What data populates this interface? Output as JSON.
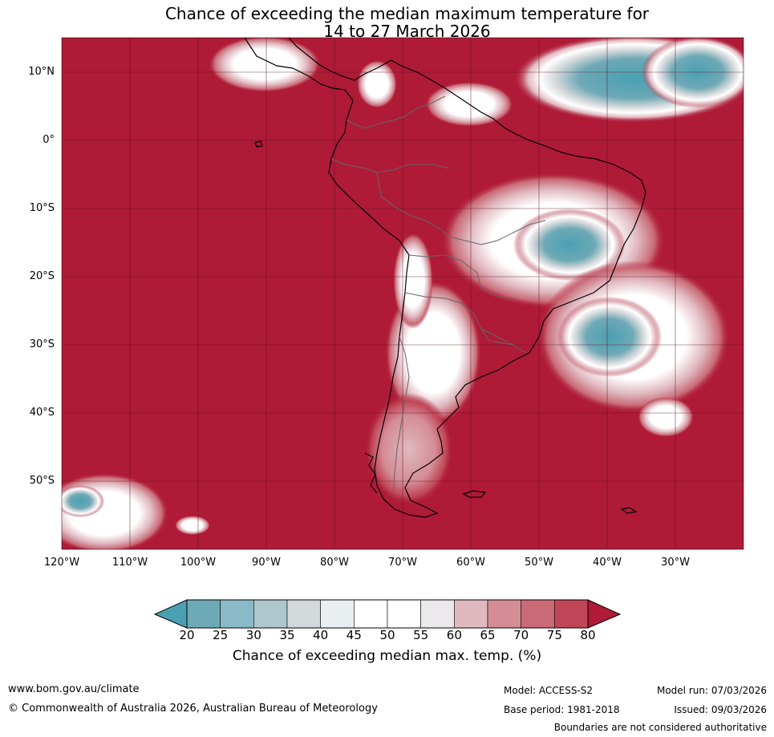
{
  "title": {
    "line1": "Chance of exceeding the median maximum temperature for",
    "line2": "14 to 27 March 2026"
  },
  "axes": {
    "lat_labels": [
      "10°N",
      "0°",
      "10°S",
      "20°S",
      "30°S",
      "40°S",
      "50°S"
    ],
    "lon_labels": [
      "120°W",
      "110°W",
      "100°W",
      "90°W",
      "80°W",
      "70°W",
      "60°W",
      "50°W",
      "40°W",
      "30°W"
    ],
    "lon_range": [
      -120,
      -20
    ],
    "lat_range": [
      -60,
      15
    ]
  },
  "colorbar": {
    "ticks": [
      "20",
      "25",
      "30",
      "35",
      "40",
      "45",
      "50",
      "55",
      "60",
      "65",
      "70",
      "75",
      "80"
    ],
    "colors": [
      "#6ea9b6",
      "#8ab9c7",
      "#adc7cd",
      "#d3d8da",
      "#e9eef1",
      "#ffffff",
      "#ffffff",
      "#ebe9eb",
      "#e0b9c0",
      "#d48c95",
      "#c96a76",
      "#c04657"
    ],
    "low_extend_color": "#4aa0b2",
    "high_extend_color": "#af1a37",
    "label": "Chance of exceeding median max. temp. (%)"
  },
  "colors": {
    "dominant": "#af1a37",
    "cool": "#4aa0b2"
  },
  "footer": {
    "website": "www.bom.gov.au/climate",
    "copyright": "© Commonwealth of Australia 2026, Australian Bureau of Meteorology",
    "model": "Model: ACCESS-S2",
    "base_period": "Base period: 1981-2018",
    "model_run": "Model run: 07/03/2026",
    "issued": "Issued: 09/03/2026",
    "disclaimer": "Boundaries are not considered authoritative"
  }
}
